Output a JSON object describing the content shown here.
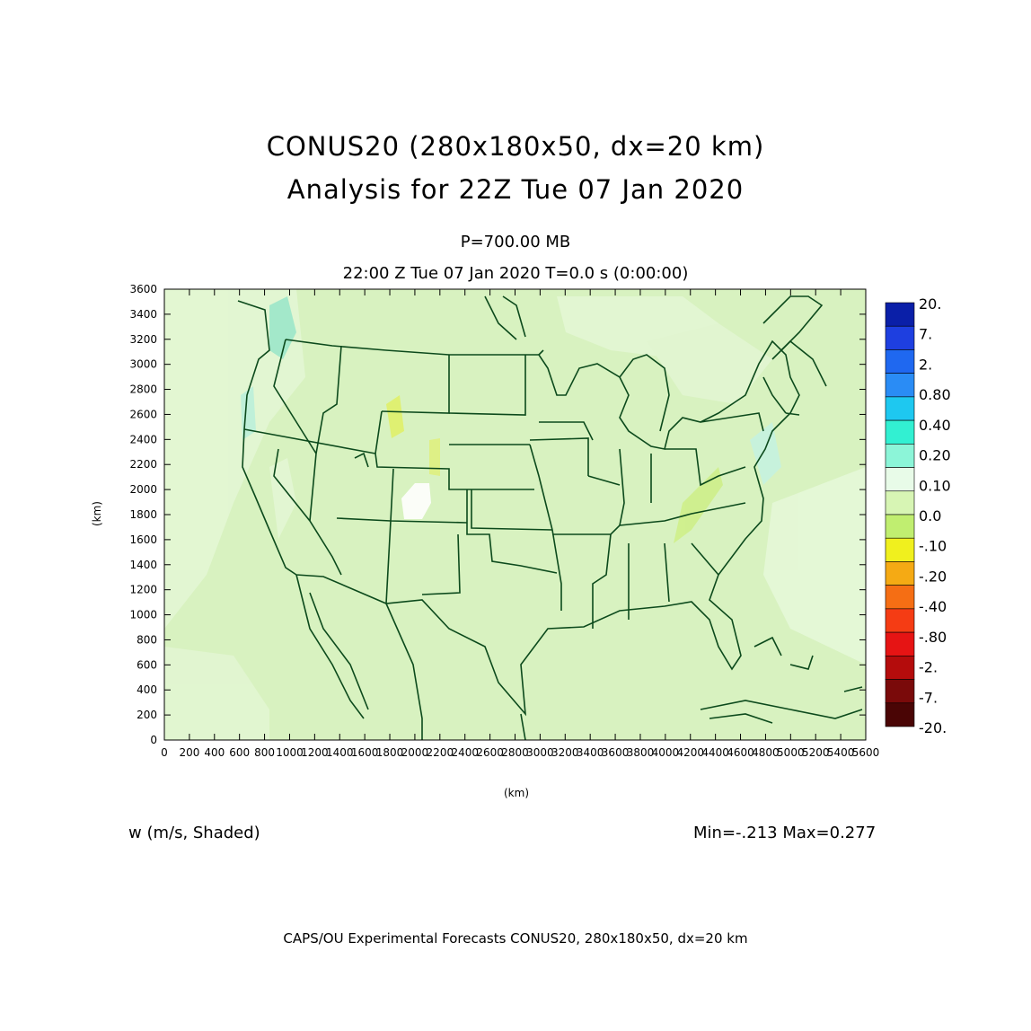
{
  "header": {
    "title_line1": "CONUS20 (280x180x50, dx=20 km)",
    "title_line2": "Analysis for 22Z Tue 07 Jan 2020",
    "level": "P=700.00 MB",
    "valid_time": "22:00 Z Tue 07 Jan 2020    T=0.0 s (0:00:00)"
  },
  "axes": {
    "ylabel": "(km)",
    "xlabel": "(km)",
    "yticks": [
      "0",
      "200",
      "400",
      "600",
      "800",
      "1000",
      "1200",
      "1400",
      "1600",
      "1800",
      "2000",
      "2200",
      "2400",
      "2600",
      "2800",
      "3000",
      "3200",
      "3400",
      "3600"
    ],
    "xticks": [
      "0",
      "200",
      "400",
      "600",
      "800",
      "1000",
      "1200",
      "1400",
      "1600",
      "1800",
      "2000",
      "2200",
      "2400",
      "2600",
      "2800",
      "3000",
      "3200",
      "3400",
      "3600",
      "3800",
      "4000",
      "4200",
      "4400",
      "4600",
      "4800",
      "5000",
      "5200",
      "5400",
      "5600"
    ]
  },
  "colorbar": {
    "labels": [
      "20.",
      "7.",
      "2.",
      "0.80",
      "0.40",
      "0.20",
      "0.10",
      "0.0",
      "-.10",
      "-.20",
      "-.40",
      "-.80",
      "-2.",
      "-7.",
      "-20."
    ],
    "colors": [
      "#0a1fa8",
      "#1e3fe0",
      "#1f68f0",
      "#2a8cf5",
      "#1ec8f0",
      "#32f0d2",
      "#8cf5d8",
      "#e8fbe8",
      "#d7f5b4",
      "#c0ee70",
      "#f0f01e",
      "#f5aa14",
      "#f56e14",
      "#f53c14",
      "#e61414",
      "#b40c0c",
      "#7a0a0a",
      "#4a0505"
    ]
  },
  "field": {
    "name": "w (m/s, Shaded)",
    "stats": "Min=-.213 Max=0.277"
  },
  "footer": "CAPS/OU Experimental Forecasts  CONUS20, 280x180x50, dx=20 km",
  "map": {
    "x_range_km": [
      0,
      5600
    ],
    "y_range_km": [
      0,
      3600
    ],
    "background_color": "#d8f2c0",
    "boundary_color": "#0c4a1c"
  }
}
